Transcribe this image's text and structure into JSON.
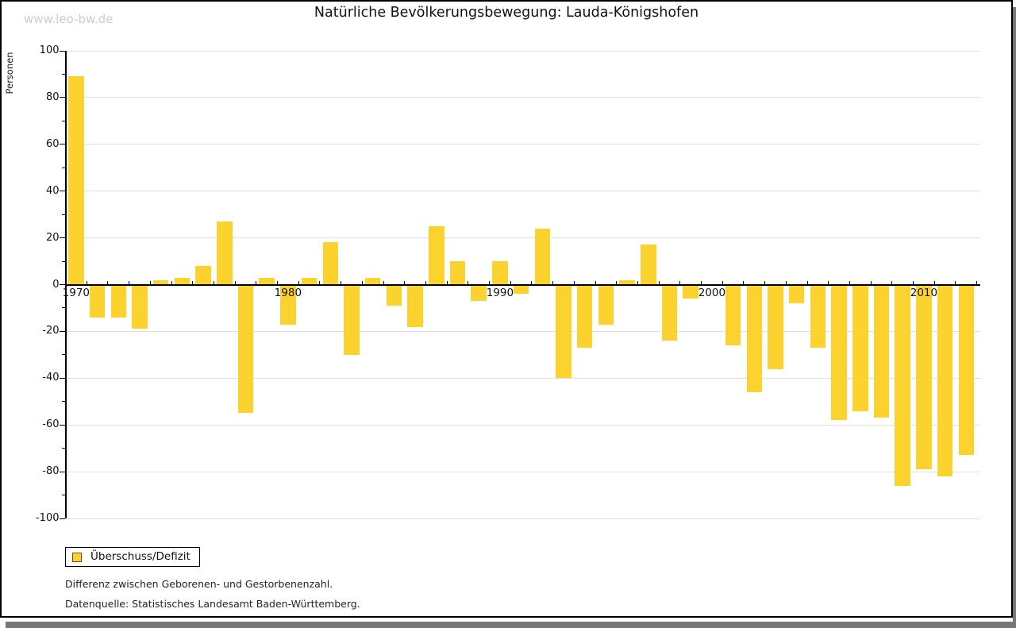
{
  "watermark": "www.leo-bw.de",
  "chart_data": {
    "type": "bar",
    "title": "Natürliche Bevölkerungsbewegung: Lauda-Königshofen",
    "ylabel": "Personen",
    "ylim": [
      -100,
      100
    ],
    "ytick_major_step": 20,
    "ytick_minor_step": 10,
    "grid": true,
    "xticklabels": [
      "1970",
      "1980",
      "1990",
      "2000",
      "2010"
    ],
    "x": [
      1970,
      1971,
      1972,
      1973,
      1974,
      1975,
      1976,
      1977,
      1978,
      1979,
      1980,
      1981,
      1982,
      1983,
      1984,
      1985,
      1986,
      1987,
      1988,
      1989,
      1990,
      1991,
      1992,
      1993,
      1994,
      1995,
      1996,
      1997,
      1998,
      1999,
      2000,
      2001,
      2002,
      2003,
      2004,
      2005,
      2006,
      2007,
      2008,
      2009,
      2010,
      2011,
      2012
    ],
    "series": [
      {
        "name": "Überschuss/Defizit",
        "color": "#fcd32e",
        "values": [
          89,
          -14,
          -14,
          -19,
          2,
          3,
          8,
          27,
          -55,
          3,
          -17,
          3,
          18,
          -30,
          3,
          -9,
          -18,
          25,
          10,
          -7,
          10,
          -4,
          24,
          -40,
          -27,
          -17,
          2,
          17,
          -24,
          -6,
          0,
          -26,
          -46,
          -36,
          -8,
          -27,
          -58,
          -54,
          -57,
          -86,
          -79,
          -82,
          -73
        ]
      }
    ],
    "legend_position": "bottom-left"
  },
  "legend": {
    "label": "Überschuss/Defizit",
    "swatch_color": "#fcd32e",
    "swatch_border": "#555522"
  },
  "notes": {
    "line1": "Differenz zwischen Geborenen- und Gestorbenenzahl.",
    "line2": "Datenquelle: Statistisches Landesamt Baden-Württemberg."
  },
  "colors": {
    "bar": "#fcd32e",
    "grid": "#e0e0e0",
    "axis": "#000000",
    "watermark": "#cccccc",
    "frame_shadow": "#777777"
  }
}
